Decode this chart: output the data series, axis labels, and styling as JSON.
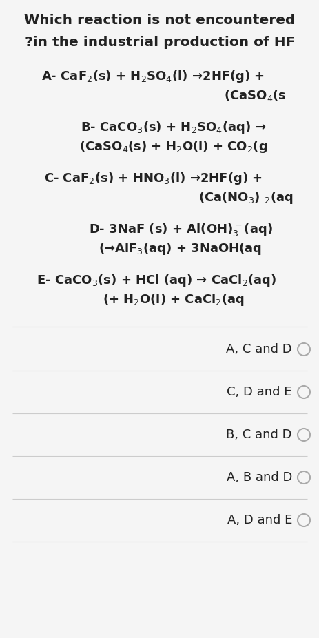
{
  "title_line1": "Which reaction is not encountered",
  "title_line2": "?in the industrial production of HF",
  "reaction_A_line1": "A- CaF$_2$(s) + H$_2$SO$_4$(l) →2HF(g) +",
  "reaction_A_line2": "(CaSO$_4$(s",
  "reaction_B_line1": "B- CaCO$_3$(s) + H$_2$SO$_4$(aq) →",
  "reaction_B_line2": "(CaSO$_4$(s) + H$_2$O(l) + CO$_2$(g",
  "reaction_C_line1": "C- CaF$_2$(s) + HNO$_3$(l) →2HF(g) +",
  "reaction_C_line2": "(Ca(NO$_3$) $_{2}$(aq",
  "reaction_D_line1": "D- 3NaF (s) + Al(OH)$_3^-$(aq)",
  "reaction_D_line2": "(→AlF$_3$(aq) + 3NaOH(aq",
  "reaction_E_line1": "E- CaCO$_3$(s) + HCl (aq) → CaCl$_2$(aq)",
  "reaction_E_line2": "(+ H$_2$O(l) + CaCl$_2$(aq",
  "options": [
    "A, C and D",
    "C, D and E",
    "B, C and D",
    "A, B and D",
    "A, D and E"
  ],
  "bg_color": "#f5f5f5",
  "text_color": "#222222",
  "separator_color": "#cccccc",
  "title_fontsize": 14.5,
  "reaction_fontsize": 13.0,
  "option_fontsize": 13.0,
  "figwidth": 4.64,
  "figheight": 9.26,
  "dpi": 100
}
